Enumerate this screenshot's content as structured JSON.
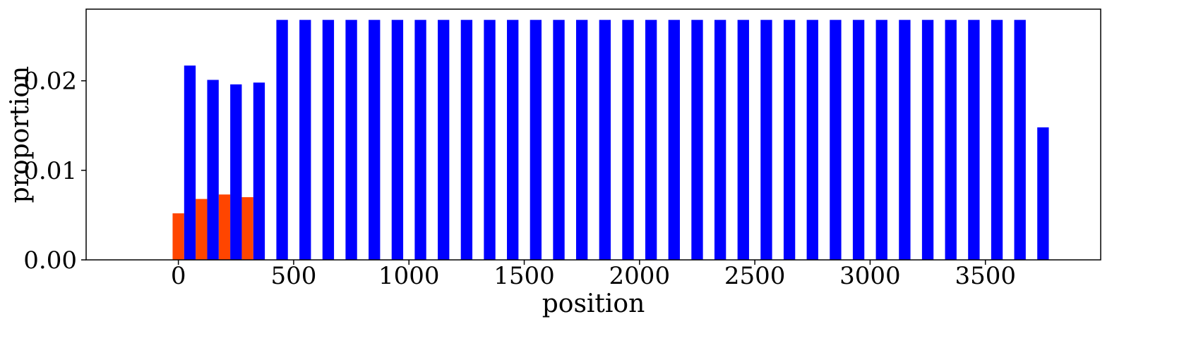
{
  "chart_data": {
    "type": "bar",
    "title": "",
    "xlabel": "position",
    "ylabel": "proportion",
    "xlim": [
      -400,
      4000
    ],
    "ylim": [
      0,
      0.028
    ],
    "grid": false,
    "legend": null,
    "bar_width": 50,
    "x_ticks": [
      0,
      500,
      1000,
      1500,
      2000,
      2500,
      3000,
      3500
    ],
    "x_tick_labels": [
      "0",
      "500",
      "1000",
      "1500",
      "2000",
      "2500",
      "3000",
      "3500"
    ],
    "y_ticks": [
      0,
      0.01,
      0.02
    ],
    "y_tick_labels": [
      "0.00",
      "0.01",
      "0.02"
    ],
    "series": [
      {
        "color": "#ff4500",
        "x": [
          0,
          100,
          200,
          300
        ],
        "values": [
          0.0052,
          0.0068,
          0.0073,
          0.007
        ]
      },
      {
        "color": "#0000ff",
        "x": [
          50,
          150,
          250,
          350,
          450,
          550,
          650,
          750,
          850,
          950,
          1050,
          1150,
          1250,
          1350,
          1450,
          1550,
          1650,
          1750,
          1850,
          1950,
          2050,
          2150,
          2250,
          2350,
          2450,
          2550,
          2650,
          2750,
          2850,
          2950,
          3050,
          3150,
          3250,
          3350,
          3450,
          3550,
          3650,
          3750
        ],
        "values": [
          0.0217,
          0.0201,
          0.0196,
          0.0198,
          0.0268,
          0.0268,
          0.0268,
          0.0268,
          0.0268,
          0.0268,
          0.0268,
          0.0268,
          0.0268,
          0.0268,
          0.0268,
          0.0268,
          0.0268,
          0.0268,
          0.0268,
          0.0268,
          0.0268,
          0.0268,
          0.0268,
          0.0268,
          0.0268,
          0.0268,
          0.0268,
          0.0268,
          0.0268,
          0.0268,
          0.0268,
          0.0268,
          0.0268,
          0.0268,
          0.0268,
          0.0268,
          0.0268,
          0.0148
        ]
      }
    ]
  }
}
